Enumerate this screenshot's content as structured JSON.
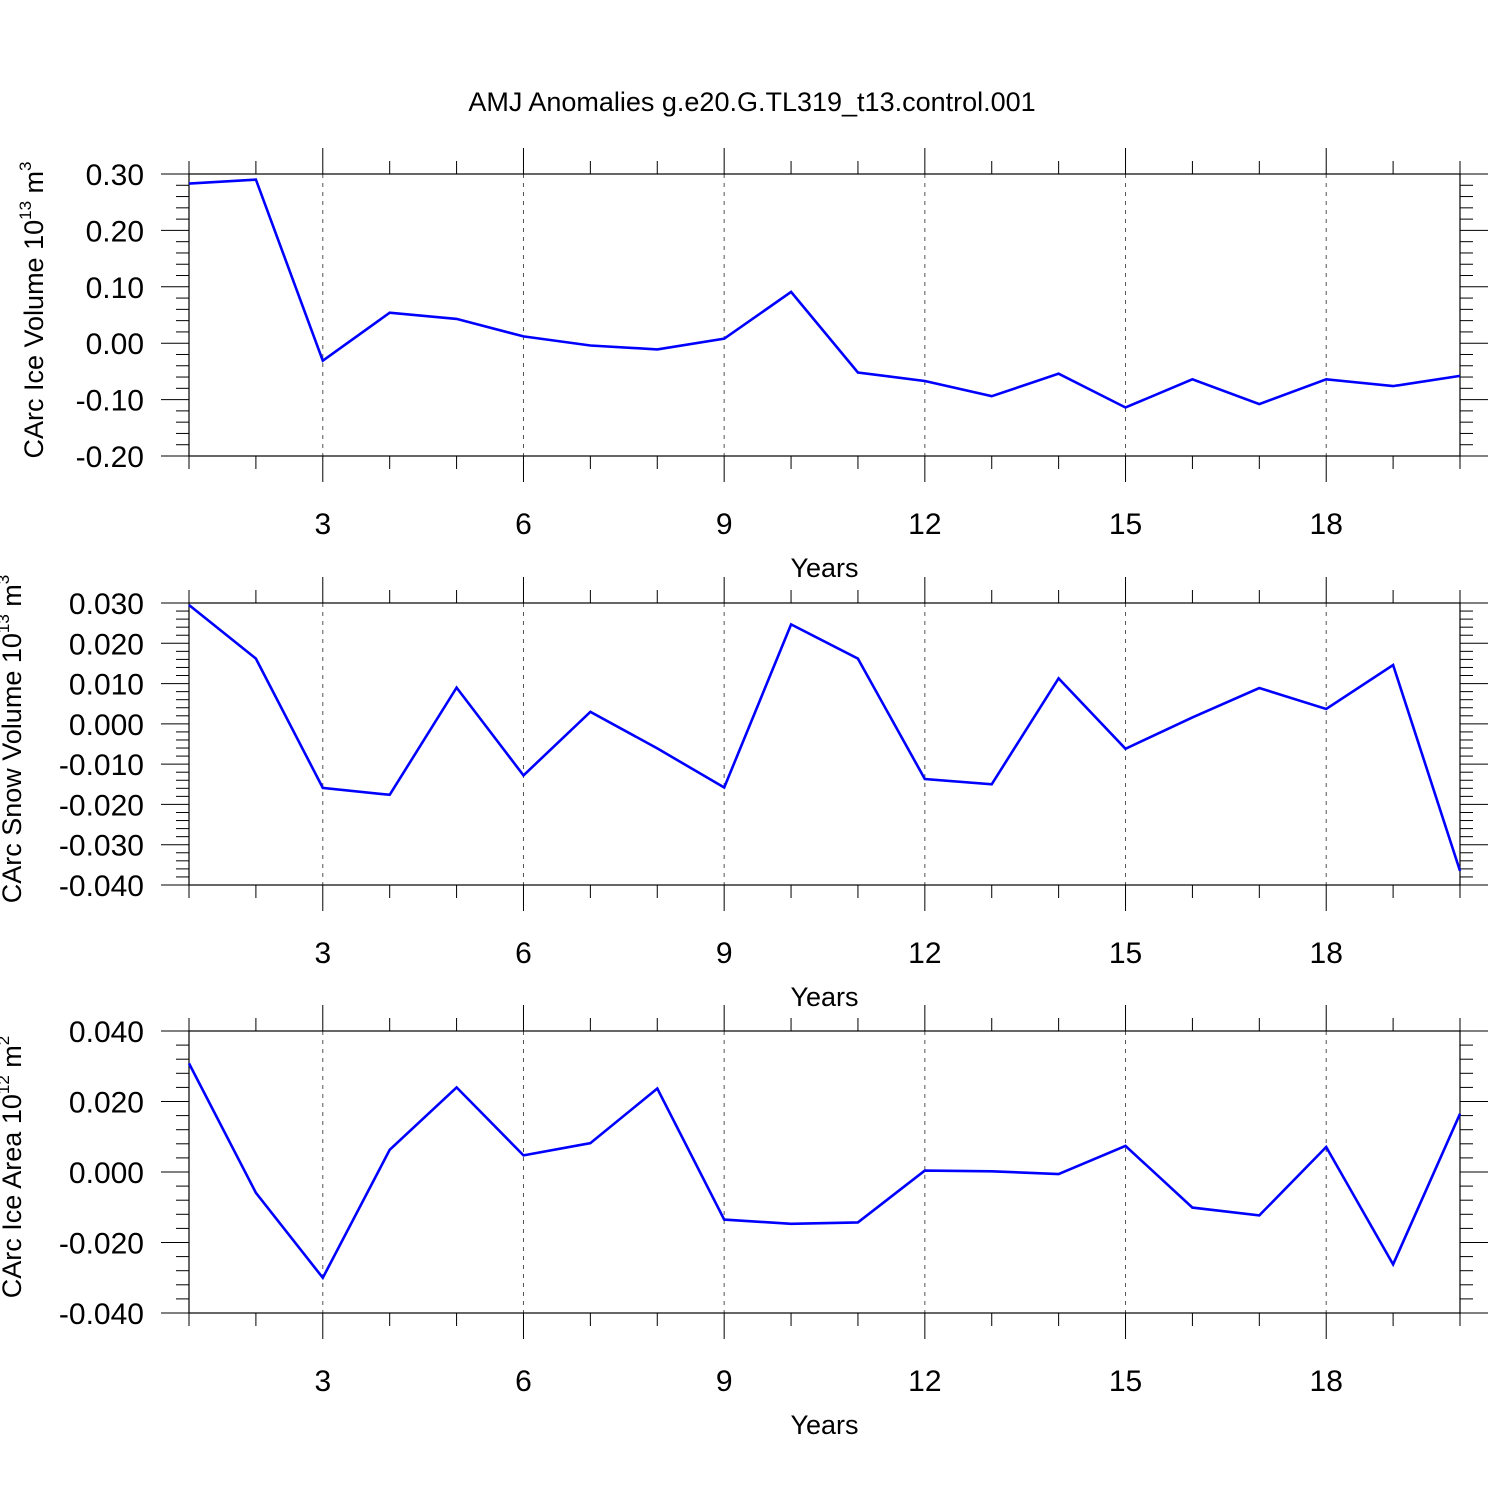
{
  "title": "AMJ Anomalies g.e20.G.TL319_t13.control.001",
  "colors": {
    "line": "#0000ff",
    "axis": "#000000",
    "grid": "#555555",
    "background": "#ffffff"
  },
  "chart_data": [
    {
      "type": "line",
      "ylabel": "CArc Ice Volume 10",
      "ylabel_exp": "13",
      "ylabel_unit": " m",
      "ylabel_unit_exp": "3",
      "xlabel": "Years",
      "xlim": [
        1,
        20
      ],
      "ylim": [
        -0.2,
        0.3
      ],
      "yticks": [
        -0.2,
        -0.1,
        0.0,
        0.1,
        0.2,
        0.3
      ],
      "ytick_labels": [
        "-0.20",
        "-0.10",
        "0.00",
        "0.10",
        "0.20",
        "0.30"
      ],
      "xticks": [
        3,
        6,
        9,
        12,
        15,
        18
      ],
      "xtick_labels": [
        "3",
        "6",
        "9",
        "12",
        "15",
        "18"
      ],
      "series": [
        {
          "name": "CArc Ice Volume",
          "x": [
            1,
            2,
            3,
            4,
            5,
            6,
            7,
            8,
            9,
            10,
            11,
            12,
            13,
            14,
            15,
            16,
            17,
            18,
            19,
            20
          ],
          "values": [
            0.283,
            0.29,
            -0.031,
            0.054,
            0.043,
            0.012,
            -0.004,
            -0.011,
            0.008,
            0.091,
            -0.052,
            -0.067,
            -0.094,
            -0.054,
            -0.114,
            -0.064,
            -0.108,
            -0.064,
            -0.076,
            -0.058
          ]
        }
      ]
    },
    {
      "type": "line",
      "ylabel": "CArc Snow Volume 10",
      "ylabel_exp": "13",
      "ylabel_unit": " m",
      "ylabel_unit_exp": "3",
      "xlabel": "Years",
      "xlim": [
        1,
        20
      ],
      "ylim": [
        -0.04,
        0.03
      ],
      "yticks": [
        -0.04,
        -0.03,
        -0.02,
        -0.01,
        0.0,
        0.01,
        0.02,
        0.03
      ],
      "ytick_labels": [
        "-0.040",
        "-0.030",
        "-0.020",
        "-0.010",
        "0.000",
        "0.010",
        "0.020",
        "0.030"
      ],
      "xticks": [
        3,
        6,
        9,
        12,
        15,
        18
      ],
      "xtick_labels": [
        "3",
        "6",
        "9",
        "12",
        "15",
        "18"
      ],
      "series": [
        {
          "name": "CArc Snow Volume",
          "x": [
            1,
            2,
            3,
            4,
            5,
            6,
            7,
            8,
            9,
            10,
            11,
            12,
            13,
            14,
            15,
            16,
            17,
            18,
            19,
            20
          ],
          "values": [
            0.0295,
            0.0162,
            -0.0159,
            -0.0176,
            0.009,
            -0.0128,
            0.003,
            -0.0061,
            -0.0158,
            0.0247,
            0.0162,
            -0.0137,
            -0.015,
            0.0113,
            -0.0062,
            0.0016,
            0.0089,
            0.0037,
            0.0146,
            -0.0365
          ]
        }
      ]
    },
    {
      "type": "line",
      "ylabel": "CArc Ice Area 10",
      "ylabel_exp": "12",
      "ylabel_unit": " m",
      "ylabel_unit_exp": "2",
      "xlabel": "Years",
      "xlim": [
        1,
        20
      ],
      "ylim": [
        -0.04,
        0.04
      ],
      "yticks": [
        -0.04,
        -0.02,
        0.0,
        0.02,
        0.04
      ],
      "ytick_labels": [
        "-0.040",
        "-0.020",
        "0.000",
        "0.020",
        "0.040"
      ],
      "xticks": [
        3,
        6,
        9,
        12,
        15,
        18
      ],
      "xtick_labels": [
        "3",
        "6",
        "9",
        "12",
        "15",
        "18"
      ],
      "series": [
        {
          "name": "CArc Ice Area",
          "x": [
            1,
            2,
            3,
            4,
            5,
            6,
            7,
            8,
            9,
            10,
            11,
            12,
            13,
            14,
            15,
            16,
            17,
            18,
            19,
            20
          ],
          "values": [
            0.0308,
            -0.0059,
            -0.03,
            0.0063,
            0.024,
            0.0047,
            0.0082,
            0.0237,
            -0.0135,
            -0.0147,
            -0.0143,
            0.0004,
            0.0002,
            -0.0006,
            0.0074,
            -0.0101,
            -0.0123,
            0.0071,
            -0.0262,
            0.0165
          ]
        }
      ]
    }
  ]
}
